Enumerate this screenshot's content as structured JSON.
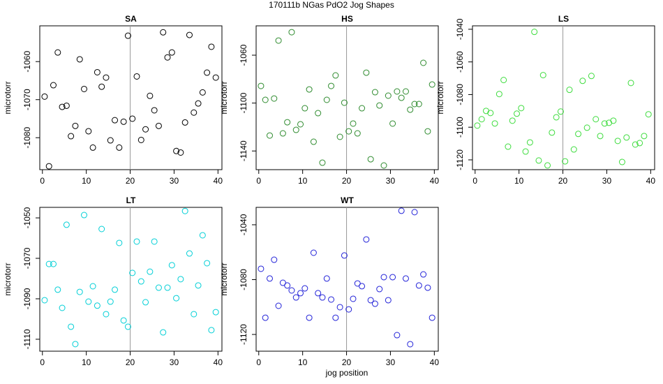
{
  "title": "170111b   NGas PdO2 Jog Shapes",
  "x_label": "jog position",
  "chart_data": [
    {
      "type": "scatter",
      "title": "SA",
      "y_label": "microtorr",
      "color": "#000000",
      "vline": 20,
      "xlim": [
        -0.6,
        40.9
      ],
      "xticks": [
        0,
        10,
        20,
        30,
        40
      ],
      "ylim": [
        -1088.4,
        -1050.6
      ],
      "yticks": [
        -1060,
        -1070,
        -1080
      ],
      "x": [
        0.5,
        1.5,
        2.5,
        3.5,
        4.5,
        5.5,
        6.5,
        7.5,
        8.5,
        9.5,
        10.5,
        11.5,
        12.5,
        13.5,
        14.5,
        15.5,
        16.5,
        17.5,
        18.5,
        19.5,
        20.5,
        21.5,
        22.5,
        23.5,
        24.5,
        25.5,
        26.5,
        27.5,
        28.5,
        29.5,
        30.5,
        31.5,
        32.5,
        33.5,
        34.5,
        35.5,
        36.5,
        37.5,
        38.5,
        39.5
      ],
      "values": [
        -1069.2,
        -1087.5,
        -1066.2,
        -1057.6,
        -1071.9,
        -1071.6,
        -1079.6,
        -1076.9,
        -1059.4,
        -1067.2,
        -1078.3,
        -1082.6,
        -1062.8,
        -1066.6,
        -1064.2,
        -1080.7,
        -1075.4,
        -1082.6,
        -1075.8,
        -1053.2,
        -1075.0,
        -1063.9,
        -1080.6,
        -1077.8,
        -1069.0,
        -1072.8,
        -1076.9,
        -1052.3,
        -1058.9,
        -1057.6,
        -1083.5,
        -1083.9,
        -1076.0,
        -1053.0,
        -1073.4,
        -1071.0,
        -1068.1,
        -1062.9,
        -1056.1,
        -1064.2
      ]
    },
    {
      "type": "scatter",
      "title": "HS",
      "y_label": "microtorr",
      "color": "#2e8b2e",
      "vline": 20,
      "xlim": [
        -0.6,
        40.9
      ],
      "xticks": [
        0,
        10,
        20,
        30,
        40
      ],
      "ylim": [
        -1155.6,
        -1035.5
      ],
      "yticks": [
        -1060,
        -1100,
        -1140
      ],
      "x": [
        0.5,
        1.5,
        2.5,
        3.5,
        4.5,
        5.5,
        6.5,
        7.5,
        8.5,
        9.5,
        10.5,
        11.5,
        12.5,
        13.5,
        14.5,
        15.5,
        16.5,
        17.5,
        18.5,
        19.5,
        20.5,
        21.5,
        22.5,
        23.5,
        24.5,
        25.5,
        26.5,
        27.5,
        28.5,
        29.5,
        30.5,
        31.5,
        32.5,
        33.5,
        34.5,
        35.5,
        36.5,
        37.5,
        38.5,
        39.5
      ],
      "values": [
        -1085.7,
        -1097.3,
        -1127.1,
        -1096.2,
        -1047.8,
        -1125.3,
        -1116.0,
        -1040.8,
        -1122.4,
        -1117.7,
        -1104.3,
        -1088.6,
        -1132.3,
        -1108.4,
        -1149.8,
        -1097.3,
        -1085.7,
        -1076.9,
        -1128.2,
        -1099.7,
        -1123.6,
        -1117.1,
        -1125.3,
        -1104.3,
        -1074.6,
        -1146.9,
        -1090.9,
        -1102.0,
        -1152.1,
        -1093.8,
        -1117.1,
        -1090.3,
        -1095.6,
        -1090.3,
        -1105.5,
        -1100.8,
        -1100.8,
        -1066.4,
        -1123.6,
        -1084.5
      ]
    },
    {
      "type": "scatter",
      "title": "LS",
      "y_label": "microtorr",
      "color": "#3ddc3d",
      "vline": 20,
      "xlim": [
        -0.6,
        40.9
      ],
      "xticks": [
        0,
        10,
        20,
        30,
        40
      ],
      "ylim": [
        -1126,
        -1037.9
      ],
      "yticks": [
        -1040,
        -1060,
        -1080,
        -1100,
        -1120
      ],
      "x": [
        0.5,
        1.5,
        2.5,
        3.5,
        4.5,
        5.5,
        6.5,
        7.5,
        8.5,
        9.5,
        10.5,
        11.5,
        12.5,
        13.5,
        14.5,
        15.5,
        16.5,
        17.5,
        18.5,
        19.5,
        20.5,
        21.5,
        22.5,
        23.5,
        24.5,
        25.5,
        26.5,
        27.5,
        28.5,
        29.5,
        30.5,
        31.5,
        32.5,
        33.5,
        34.5,
        35.5,
        36.5,
        37.5,
        38.5,
        39.5
      ],
      "values": [
        -1099.0,
        -1095.1,
        -1090.0,
        -1091.3,
        -1097.7,
        -1079.7,
        -1071.1,
        -1111.9,
        -1096.0,
        -1091.7,
        -1088.3,
        -1114.9,
        -1109.3,
        -1041.6,
        -1120.4,
        -1068.1,
        -1123.4,
        -1103.3,
        -1093.9,
        -1090.4,
        -1120.9,
        -1077.1,
        -1113.6,
        -1104.1,
        -1071.6,
        -1100.3,
        -1068.6,
        -1095.1,
        -1105.4,
        -1097.7,
        -1097.3,
        -1096.0,
        -1108.4,
        -1121.3,
        -1106.3,
        -1072.9,
        -1110.6,
        -1109.7,
        -1105.4,
        -1092.1
      ]
    },
    {
      "type": "scatter",
      "title": "LT",
      "y_label": "microtorr",
      "color": "#00cfd6",
      "vline": 20,
      "xlim": [
        -0.6,
        40.9
      ],
      "xticks": [
        0,
        10,
        20,
        30,
        40
      ],
      "ylim": [
        -1115.9,
        -1044.8
      ],
      "yticks": [
        -1050,
        -1070,
        -1090,
        -1110
      ],
      "x": [
        0.5,
        1.5,
        2.5,
        3.5,
        4.5,
        5.5,
        6.5,
        7.5,
        8.5,
        9.5,
        10.5,
        11.5,
        12.5,
        13.5,
        14.5,
        15.5,
        16.5,
        17.5,
        18.5,
        19.5,
        20.5,
        21.5,
        22.5,
        23.5,
        24.5,
        25.5,
        26.5,
        27.5,
        28.5,
        29.5,
        30.5,
        31.5,
        32.5,
        33.5,
        34.5,
        35.5,
        36.5,
        37.5,
        38.5,
        39.5
      ],
      "values": [
        -1090.7,
        -1072.8,
        -1072.8,
        -1085.5,
        -1094.5,
        -1053.4,
        -1103.8,
        -1112.4,
        -1086.6,
        -1048.6,
        -1091.4,
        -1083.8,
        -1093.4,
        -1055.5,
        -1097.6,
        -1091.4,
        -1085.5,
        -1062.4,
        -1100.7,
        -1103.8,
        -1077.2,
        -1061.7,
        -1081.4,
        -1091.7,
        -1076.6,
        -1061.7,
        -1084.5,
        -1106.6,
        -1084.5,
        -1073.4,
        -1089.7,
        -1080.3,
        -1046.6,
        -1067.6,
        -1097.6,
        -1083.4,
        -1058.6,
        -1072.4,
        -1105.5,
        -1096.6
      ]
    },
    {
      "type": "scatter",
      "title": "WT",
      "y_label": "microtorr",
      "color": "#2222d8",
      "vline": 20,
      "xlim": [
        -0.6,
        40.9
      ],
      "xticks": [
        0,
        10,
        20,
        30,
        40
      ],
      "ylim": [
        -1132.2,
        -1027.3
      ],
      "yticks": [
        -1040,
        -1080,
        -1120
      ],
      "x": [
        0.5,
        1.5,
        2.5,
        3.5,
        4.5,
        5.5,
        6.5,
        7.5,
        8.5,
        9.5,
        10.5,
        11.5,
        12.5,
        13.5,
        14.5,
        15.5,
        16.5,
        17.5,
        18.5,
        19.5,
        20.5,
        21.5,
        22.5,
        23.5,
        24.5,
        25.5,
        26.5,
        27.5,
        28.5,
        29.5,
        30.5,
        31.5,
        32.5,
        33.5,
        34.5,
        35.5,
        36.5,
        37.5,
        38.5,
        39.5
      ],
      "values": [
        -1072.1,
        -1107.8,
        -1079.2,
        -1065.5,
        -1099.1,
        -1082.3,
        -1084.3,
        -1087.9,
        -1093.0,
        -1089.9,
        -1086.4,
        -1107.8,
        -1060.4,
        -1089.9,
        -1093.0,
        -1079.2,
        -1094.5,
        -1107.8,
        -1100.1,
        -1062.4,
        -1101.7,
        -1094.0,
        -1082.8,
        -1084.8,
        -1050.7,
        -1095.0,
        -1097.6,
        -1086.9,
        -1078.2,
        -1095.0,
        -1078.2,
        -1120.5,
        -1029.8,
        -1079.2,
        -1127.1,
        -1030.8,
        -1084.3,
        -1076.2,
        -1085.9,
        -1107.8
      ]
    }
  ]
}
